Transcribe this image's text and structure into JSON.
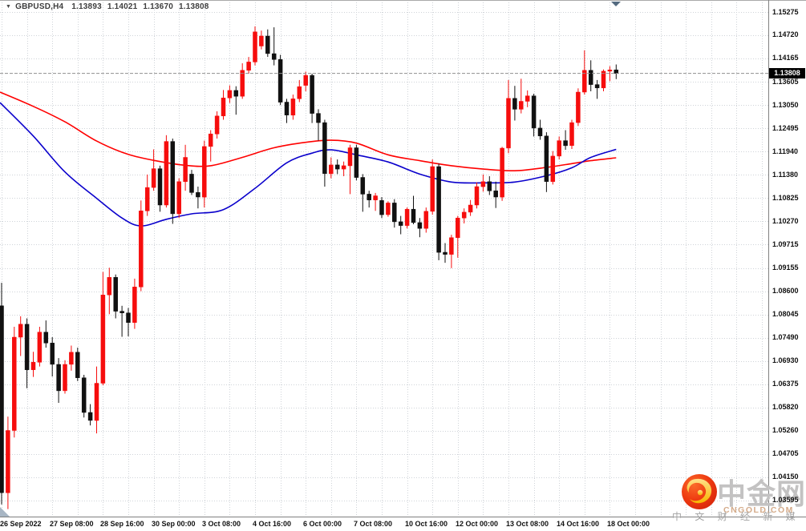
{
  "window": {
    "symbol_timeframe": "GBPUSD,H4",
    "open": "1.13893",
    "high": "1.14021",
    "low": "1.13670",
    "close": "1.13808",
    "collapse_icon": "▼"
  },
  "price_axis": {
    "labels": [
      "1.15275",
      "1.14720",
      "1.14165",
      "1.13605",
      "1.13050",
      "1.12495",
      "1.11940",
      "1.11380",
      "1.10825",
      "1.10270",
      "1.09715",
      "1.09155",
      "1.08600",
      "1.08045",
      "1.07490",
      "1.06930",
      "1.06375",
      "1.05820",
      "1.05260",
      "1.04705",
      "1.04150",
      "1.03595"
    ],
    "current_badge": "1.13808"
  },
  "time_axis": {
    "labels": [
      {
        "text": "26 Sep 2022",
        "bar": 0
      },
      {
        "text": "27 Sep 08:00",
        "bar": 8
      },
      {
        "text": "28 Sep 16:00",
        "bar": 16
      },
      {
        "text": "30 Sep 00:00",
        "bar": 24
      },
      {
        "text": "3 Oct 08:00",
        "bar": 32
      },
      {
        "text": "4 Oct 16:00",
        "bar": 40
      },
      {
        "text": "6 Oct 00:00",
        "bar": 48
      },
      {
        "text": "7 Oct 08:00",
        "bar": 56
      },
      {
        "text": "10 Oct 16:00",
        "bar": 64
      },
      {
        "text": "12 Oct 00:00",
        "bar": 72
      },
      {
        "text": "13 Oct 08:00",
        "bar": 80
      },
      {
        "text": "14 Oct 16:00",
        "bar": 88
      },
      {
        "text": "18 Oct 00:00",
        "bar": 96
      }
    ]
  },
  "watermark": {
    "brand": "中金网",
    "site": "CNGOLD.COM",
    "tagline": "中 文 财 经 新 媒 体"
  },
  "colors": {
    "bull": "#f60d0d",
    "bear": "#111111",
    "ma_red": "#ff0000",
    "ma_blue": "#0a00cc",
    "grid": "#cfd3d8",
    "bid_line": "#8f8f8f",
    "frame": "#808080",
    "top_border": "#a9a9a9",
    "scroll_marker": "#546b80",
    "corner_wedge": "#a8b6c4",
    "badge_bg": "#000000",
    "badge_text": "#ffffff",
    "wm_brand": "#c3c2c2",
    "wm_site": "#d4ab8a",
    "wm_tagline": "#a2a2a2",
    "logo_red_light": "#fb6b2a",
    "logo_red": "#ee3a10",
    "logo_red_dark": "#d6250b",
    "logo_gold_light": "#ffe08a",
    "logo_gold": "#f7b500"
  },
  "chart_data": {
    "type": "candlestick",
    "symbol": "GBPUSD",
    "timeframe": "H4",
    "ylim": [
      1.033,
      1.155
    ],
    "bars": 98,
    "current_bid": 1.13808,
    "grid": true,
    "candles": [
      {
        "t": "26 Sep 00:00",
        "o": 1.0825,
        "h": 1.088,
        "l": 1.035,
        "c": 1.0378
      },
      {
        "t": "26 Sep 04:00",
        "o": 1.0378,
        "h": 1.056,
        "l": 1.0339,
        "c": 1.0527
      },
      {
        "t": "26 Sep 08:00",
        "o": 1.0527,
        "h": 1.0775,
        "l": 1.051,
        "c": 1.075
      },
      {
        "t": "26 Sep 12:00",
        "o": 1.075,
        "h": 1.08,
        "l": 1.0705,
        "c": 1.0781
      },
      {
        "t": "26 Sep 16:00",
        "o": 1.0781,
        "h": 1.0795,
        "l": 1.0628,
        "c": 1.0672
      },
      {
        "t": "26 Sep 20:00",
        "o": 1.0672,
        "h": 1.0715,
        "l": 1.0655,
        "c": 1.069
      },
      {
        "t": "27 Sep 00:00",
        "o": 1.069,
        "h": 1.0775,
        "l": 1.068,
        "c": 1.0762
      },
      {
        "t": "27 Sep 04:00",
        "o": 1.0762,
        "h": 1.079,
        "l": 1.0725,
        "c": 1.0736
      },
      {
        "t": "27 Sep 08:00",
        "o": 1.0736,
        "h": 1.075,
        "l": 1.0656,
        "c": 1.0685
      },
      {
        "t": "27 Sep 12:00",
        "o": 1.0685,
        "h": 1.07,
        "l": 1.0593,
        "c": 1.0622
      },
      {
        "t": "27 Sep 16:00",
        "o": 1.0622,
        "h": 1.0695,
        "l": 1.0615,
        "c": 1.0685
      },
      {
        "t": "27 Sep 20:00",
        "o": 1.0685,
        "h": 1.073,
        "l": 1.067,
        "c": 1.0714
      },
      {
        "t": "28 Sep 00:00",
        "o": 1.0714,
        "h": 1.0725,
        "l": 1.0645,
        "c": 1.0653
      },
      {
        "t": "28 Sep 04:00",
        "o": 1.0653,
        "h": 1.066,
        "l": 1.0558,
        "c": 1.057
      },
      {
        "t": "28 Sep 08:00",
        "o": 1.057,
        "h": 1.059,
        "l": 1.0539,
        "c": 1.0551
      },
      {
        "t": "28 Sep 12:00",
        "o": 1.0551,
        "h": 1.068,
        "l": 1.052,
        "c": 1.064
      },
      {
        "t": "28 Sep 16:00",
        "o": 1.064,
        "h": 1.0906,
        "l": 1.0635,
        "c": 1.0851
      },
      {
        "t": "28 Sep 20:00",
        "o": 1.0851,
        "h": 1.0916,
        "l": 1.0805,
        "c": 1.0893
      },
      {
        "t": "29 Sep 00:00",
        "o": 1.0893,
        "h": 1.09,
        "l": 1.0795,
        "c": 1.0812
      },
      {
        "t": "29 Sep 04:00",
        "o": 1.0812,
        "h": 1.0825,
        "l": 1.0751,
        "c": 1.0808
      },
      {
        "t": "29 Sep 08:00",
        "o": 1.0808,
        "h": 1.082,
        "l": 1.0752,
        "c": 1.0785
      },
      {
        "t": "29 Sep 12:00",
        "o": 1.0785,
        "h": 1.089,
        "l": 1.077,
        "c": 1.087
      },
      {
        "t": "29 Sep 16:00",
        "o": 1.087,
        "h": 1.1077,
        "l": 1.086,
        "c": 1.1052
      },
      {
        "t": "29 Sep 20:00",
        "o": 1.1052,
        "h": 1.1139,
        "l": 1.104,
        "c": 1.1108
      },
      {
        "t": "30 Sep 00:00",
        "o": 1.1108,
        "h": 1.1199,
        "l": 1.11,
        "c": 1.1153
      },
      {
        "t": "30 Sep 04:00",
        "o": 1.1153,
        "h": 1.116,
        "l": 1.105,
        "c": 1.1066
      },
      {
        "t": "30 Sep 08:00",
        "o": 1.1066,
        "h": 1.1233,
        "l": 1.106,
        "c": 1.1218
      },
      {
        "t": "30 Sep 12:00",
        "o": 1.1218,
        "h": 1.1225,
        "l": 1.1021,
        "c": 1.1045
      },
      {
        "t": "30 Sep 16:00",
        "o": 1.1045,
        "h": 1.113,
        "l": 1.1035,
        "c": 1.1122
      },
      {
        "t": "30 Sep 20:00",
        "o": 1.1122,
        "h": 1.121,
        "l": 1.11,
        "c": 1.118
      },
      {
        "t": "3 Oct 00:00",
        "o": 1.114,
        "h": 1.115,
        "l": 1.109,
        "c": 1.1096
      },
      {
        "t": "3 Oct 04:00",
        "o": 1.1096,
        "h": 1.111,
        "l": 1.1058,
        "c": 1.1085
      },
      {
        "t": "3 Oct 08:00",
        "o": 1.1085,
        "h": 1.122,
        "l": 1.106,
        "c": 1.1206
      },
      {
        "t": "3 Oct 12:00",
        "o": 1.1206,
        "h": 1.1245,
        "l": 1.117,
        "c": 1.1236
      },
      {
        "t": "3 Oct 16:00",
        "o": 1.1236,
        "h": 1.129,
        "l": 1.1225,
        "c": 1.1279
      },
      {
        "t": "3 Oct 20:00",
        "o": 1.1279,
        "h": 1.1341,
        "l": 1.127,
        "c": 1.1322
      },
      {
        "t": "4 Oct 00:00",
        "o": 1.1322,
        "h": 1.1352,
        "l": 1.131,
        "c": 1.134
      },
      {
        "t": "4 Oct 04:00",
        "o": 1.134,
        "h": 1.135,
        "l": 1.1282,
        "c": 1.1326
      },
      {
        "t": "4 Oct 08:00",
        "o": 1.1326,
        "h": 1.1405,
        "l": 1.132,
        "c": 1.1388
      },
      {
        "t": "4 Oct 12:00",
        "o": 1.1388,
        "h": 1.142,
        "l": 1.138,
        "c": 1.1408
      },
      {
        "t": "4 Oct 16:00",
        "o": 1.1408,
        "h": 1.1493,
        "l": 1.14,
        "c": 1.148
      },
      {
        "t": "4 Oct 20:00",
        "o": 1.1446,
        "h": 1.1483,
        "l": 1.1438,
        "c": 1.147
      },
      {
        "t": "5 Oct 00:00",
        "o": 1.147,
        "h": 1.1486,
        "l": 1.142,
        "c": 1.1428
      },
      {
        "t": "5 Oct 04:00",
        "o": 1.1428,
        "h": 1.1491,
        "l": 1.14,
        "c": 1.1414
      },
      {
        "t": "5 Oct 08:00",
        "o": 1.1414,
        "h": 1.1425,
        "l": 1.1305,
        "c": 1.1312
      },
      {
        "t": "5 Oct 12:00",
        "o": 1.1312,
        "h": 1.132,
        "l": 1.1262,
        "c": 1.1281
      },
      {
        "t": "5 Oct 16:00",
        "o": 1.1281,
        "h": 1.133,
        "l": 1.127,
        "c": 1.132
      },
      {
        "t": "5 Oct 20:00",
        "o": 1.132,
        "h": 1.1365,
        "l": 1.1312,
        "c": 1.1349
      },
      {
        "t": "6 Oct 00:00",
        "o": 1.1352,
        "h": 1.1385,
        "l": 1.1338,
        "c": 1.1376
      },
      {
        "t": "6 Oct 04:00",
        "o": 1.1376,
        "h": 1.138,
        "l": 1.1262,
        "c": 1.1285
      },
      {
        "t": "6 Oct 08:00",
        "o": 1.1285,
        "h": 1.1295,
        "l": 1.122,
        "c": 1.1263
      },
      {
        "t": "6 Oct 12:00",
        "o": 1.1263,
        "h": 1.127,
        "l": 1.111,
        "c": 1.1141
      },
      {
        "t": "6 Oct 16:00",
        "o": 1.1141,
        "h": 1.118,
        "l": 1.113,
        "c": 1.1162
      },
      {
        "t": "6 Oct 20:00",
        "o": 1.1162,
        "h": 1.1175,
        "l": 1.114,
        "c": 1.1152
      },
      {
        "t": "7 Oct 00:00",
        "o": 1.1152,
        "h": 1.117,
        "l": 1.1135,
        "c": 1.116
      },
      {
        "t": "7 Oct 04:00",
        "o": 1.116,
        "h": 1.121,
        "l": 1.1092,
        "c": 1.1203
      },
      {
        "t": "7 Oct 08:00",
        "o": 1.1203,
        "h": 1.121,
        "l": 1.1125,
        "c": 1.1132
      },
      {
        "t": "7 Oct 12:00",
        "o": 1.1132,
        "h": 1.114,
        "l": 1.105,
        "c": 1.1092
      },
      {
        "t": "7 Oct 16:00",
        "o": 1.1092,
        "h": 1.11,
        "l": 1.106,
        "c": 1.1078
      },
      {
        "t": "7 Oct 20:00",
        "o": 1.1078,
        "h": 1.1095,
        "l": 1.1052,
        "c": 1.1088
      },
      {
        "t": "10 Oct 00:00",
        "o": 1.1077,
        "h": 1.1085,
        "l": 1.1035,
        "c": 1.1043
      },
      {
        "t": "10 Oct 04:00",
        "o": 1.1043,
        "h": 1.1075,
        "l": 1.1038,
        "c": 1.1071
      },
      {
        "t": "10 Oct 08:00",
        "o": 1.1071,
        "h": 1.108,
        "l": 1.1012,
        "c": 1.1026
      },
      {
        "t": "10 Oct 12:00",
        "o": 1.1026,
        "h": 1.104,
        "l": 1.0996,
        "c": 1.1017
      },
      {
        "t": "10 Oct 16:00",
        "o": 1.1017,
        "h": 1.106,
        "l": 1.101,
        "c": 1.1056
      },
      {
        "t": "10 Oct 20:00",
        "o": 1.1056,
        "h": 1.1088,
        "l": 1.102,
        "c": 1.1024
      },
      {
        "t": "11 Oct 00:00",
        "o": 1.1024,
        "h": 1.1035,
        "l": 1.0989,
        "c": 1.101
      },
      {
        "t": "11 Oct 04:00",
        "o": 1.101,
        "h": 1.106,
        "l": 1.1,
        "c": 1.1051
      },
      {
        "t": "11 Oct 08:00",
        "o": 1.1051,
        "h": 1.1175,
        "l": 1.1043,
        "c": 1.1158
      },
      {
        "t": "11 Oct 12:00",
        "o": 1.1158,
        "h": 1.1165,
        "l": 1.0934,
        "c": 1.0953
      },
      {
        "t": "11 Oct 16:00",
        "o": 1.0953,
        "h": 1.0975,
        "l": 1.0928,
        "c": 1.0948
      },
      {
        "t": "11 Oct 20:00",
        "o": 1.0948,
        "h": 1.0995,
        "l": 1.0915,
        "c": 1.0988
      },
      {
        "t": "12 Oct 00:00",
        "o": 1.0988,
        "h": 1.104,
        "l": 1.094,
        "c": 1.1035
      },
      {
        "t": "12 Oct 04:00",
        "o": 1.1035,
        "h": 1.1058,
        "l": 1.1022,
        "c": 1.1049
      },
      {
        "t": "12 Oct 08:00",
        "o": 1.1049,
        "h": 1.1078,
        "l": 1.104,
        "c": 1.1066
      },
      {
        "t": "12 Oct 12:00",
        "o": 1.1066,
        "h": 1.112,
        "l": 1.1058,
        "c": 1.111
      },
      {
        "t": "12 Oct 16:00",
        "o": 1.111,
        "h": 1.1139,
        "l": 1.1098,
        "c": 1.1122
      },
      {
        "t": "12 Oct 20:00",
        "o": 1.1122,
        "h": 1.1135,
        "l": 1.109,
        "c": 1.11
      },
      {
        "t": "13 Oct 00:00",
        "o": 1.11,
        "h": 1.1122,
        "l": 1.1059,
        "c": 1.1085
      },
      {
        "t": "13 Oct 04:00",
        "o": 1.1085,
        "h": 1.1205,
        "l": 1.1076,
        "c": 1.1202
      },
      {
        "t": "13 Oct 08:00",
        "o": 1.1202,
        "h": 1.1365,
        "l": 1.119,
        "c": 1.1321
      },
      {
        "t": "13 Oct 12:00",
        "o": 1.1321,
        "h": 1.1351,
        "l": 1.1268,
        "c": 1.1295
      },
      {
        "t": "13 Oct 16:00",
        "o": 1.1295,
        "h": 1.1368,
        "l": 1.1285,
        "c": 1.1314
      },
      {
        "t": "13 Oct 20:00",
        "o": 1.1314,
        "h": 1.134,
        "l": 1.13,
        "c": 1.1327
      },
      {
        "t": "14 Oct 00:00",
        "o": 1.1327,
        "h": 1.1332,
        "l": 1.123,
        "c": 1.125
      },
      {
        "t": "14 Oct 04:00",
        "o": 1.125,
        "h": 1.127,
        "l": 1.1222,
        "c": 1.1231
      },
      {
        "t": "14 Oct 08:00",
        "o": 1.1231,
        "h": 1.124,
        "l": 1.1097,
        "c": 1.1122
      },
      {
        "t": "14 Oct 12:00",
        "o": 1.1122,
        "h": 1.1195,
        "l": 1.1115,
        "c": 1.1183
      },
      {
        "t": "14 Oct 16:00",
        "o": 1.1183,
        "h": 1.123,
        "l": 1.1175,
        "c": 1.122
      },
      {
        "t": "14 Oct 20:00",
        "o": 1.122,
        "h": 1.1245,
        "l": 1.1198,
        "c": 1.1208
      },
      {
        "t": "17 Oct 00:00",
        "o": 1.1208,
        "h": 1.127,
        "l": 1.12,
        "c": 1.1263
      },
      {
        "t": "17 Oct 04:00",
        "o": 1.1263,
        "h": 1.1345,
        "l": 1.1255,
        "c": 1.1336
      },
      {
        "t": "17 Oct 08:00",
        "o": 1.1336,
        "h": 1.1436,
        "l": 1.133,
        "c": 1.1388
      },
      {
        "t": "17 Oct 12:00",
        "o": 1.1388,
        "h": 1.1412,
        "l": 1.1338,
        "c": 1.1354
      },
      {
        "t": "17 Oct 16:00",
        "o": 1.1354,
        "h": 1.1365,
        "l": 1.132,
        "c": 1.1346
      },
      {
        "t": "17 Oct 20:00",
        "o": 1.1346,
        "h": 1.139,
        "l": 1.1338,
        "c": 1.1386
      },
      {
        "t": "18 Oct 00:00",
        "o": 1.1386,
        "h": 1.1398,
        "l": 1.1362,
        "c": 1.1389
      },
      {
        "t": "18 Oct 04:00",
        "o": 1.13893,
        "h": 1.14021,
        "l": 1.1367,
        "c": 1.13808
      }
    ],
    "ma_red_points": [
      [
        0,
        1.1336
      ],
      [
        5,
        1.1302
      ],
      [
        10,
        1.1265
      ],
      [
        15,
        1.1219
      ],
      [
        20,
        1.1187
      ],
      [
        25,
        1.117
      ],
      [
        29,
        1.1161
      ],
      [
        33,
        1.116
      ],
      [
        38,
        1.118
      ],
      [
        43,
        1.1203
      ],
      [
        48,
        1.1216
      ],
      [
        52,
        1.1221
      ],
      [
        56,
        1.1214
      ],
      [
        61,
        1.1186
      ],
      [
        66,
        1.1172
      ],
      [
        71,
        1.116
      ],
      [
        76,
        1.1152
      ],
      [
        81,
        1.1148
      ],
      [
        86,
        1.1156
      ],
      [
        90,
        1.1165
      ],
      [
        93,
        1.1172
      ],
      [
        97,
        1.1179
      ]
    ],
    "ma_blue_points": [
      [
        0,
        1.1311
      ],
      [
        5,
        1.1231
      ],
      [
        10,
        1.1145
      ],
      [
        15,
        1.1082
      ],
      [
        19,
        1.1035
      ],
      [
        22,
        1.1016
      ],
      [
        26,
        1.1032
      ],
      [
        30,
        1.1045
      ],
      [
        35,
        1.1055
      ],
      [
        40,
        1.1106
      ],
      [
        45,
        1.1167
      ],
      [
        49,
        1.119
      ],
      [
        52,
        1.1198
      ],
      [
        56,
        1.1186
      ],
      [
        61,
        1.1169
      ],
      [
        66,
        1.114
      ],
      [
        71,
        1.1121
      ],
      [
        76,
        1.1119
      ],
      [
        81,
        1.1121
      ],
      [
        86,
        1.1136
      ],
      [
        90,
        1.1155
      ],
      [
        93,
        1.118
      ],
      [
        97,
        1.1199
      ]
    ]
  }
}
